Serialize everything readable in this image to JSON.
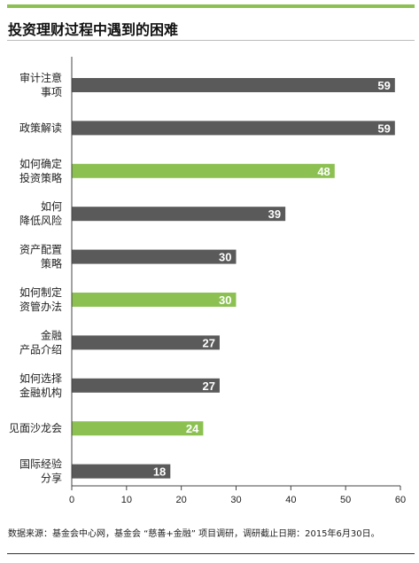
{
  "header": {
    "title": "投资理财过程中遇到的困难"
  },
  "footer": {
    "source": "数据来源：基金会中心网，基金会 “慈善+金融” 项目调研，调研截止日期：2015年6月30日。"
  },
  "colors": {
    "dark_bar": "#5a5a5a",
    "highlight_bar": "#8cc152",
    "accent_rule": "#8cc152"
  },
  "chart_data": {
    "type": "bar",
    "orientation": "horizontal",
    "title": "投资理财过程中遇到的困难",
    "xlim": [
      0,
      60
    ],
    "ticks": [
      0,
      10,
      20,
      30,
      40,
      50,
      60
    ],
    "grid": false,
    "legend": "none",
    "categories": [
      [
        "审计注意",
        "事项"
      ],
      [
        "政策解读"
      ],
      [
        "如何确定",
        "投资策略"
      ],
      [
        "如何",
        "降低风险"
      ],
      [
        "资产配置",
        "策略"
      ],
      [
        "如何制定",
        "资管办法"
      ],
      [
        "金融",
        "产品介绍"
      ],
      [
        "如何选择",
        "金融机构"
      ],
      [
        "见面沙龙会"
      ],
      [
        "国际经验",
        "分享"
      ]
    ],
    "values": [
      59,
      59,
      48,
      39,
      30,
      30,
      27,
      27,
      24,
      18
    ],
    "highlighted": [
      false,
      false,
      true,
      false,
      false,
      true,
      false,
      false,
      true,
      false
    ]
  }
}
